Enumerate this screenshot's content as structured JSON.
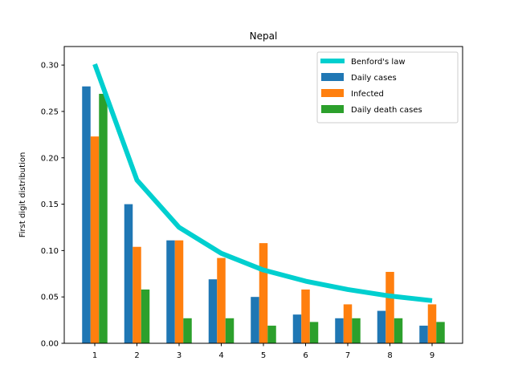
{
  "chart_data": {
    "type": "bar",
    "title": "Nepal",
    "xlabel": "",
    "ylabel": "First digit distribution",
    "categories": [
      "1",
      "2",
      "3",
      "4",
      "5",
      "6",
      "7",
      "8",
      "9"
    ],
    "ylim": [
      0,
      0.32
    ],
    "yticks": [
      "0.00",
      "0.05",
      "0.10",
      "0.15",
      "0.20",
      "0.25",
      "0.30"
    ],
    "legend_position": "top-right",
    "grid": false,
    "series": [
      {
        "name": "Daily cases",
        "kind": "bar",
        "color": "#1f77b4",
        "values": [
          0.277,
          0.15,
          0.111,
          0.069,
          0.05,
          0.031,
          0.027,
          0.035,
          0.019
        ]
      },
      {
        "name": "Infected",
        "kind": "bar",
        "color": "#ff7f0e",
        "values": [
          0.223,
          0.104,
          0.111,
          0.092,
          0.108,
          0.058,
          0.042,
          0.077,
          0.042
        ]
      },
      {
        "name": "Daily death cases",
        "kind": "bar",
        "color": "#2ca02c",
        "values": [
          0.269,
          0.058,
          0.027,
          0.027,
          0.019,
          0.023,
          0.027,
          0.027,
          0.023
        ]
      },
      {
        "name": "Benford's law",
        "kind": "line",
        "color": "#00cfcf",
        "values": [
          0.301,
          0.176,
          0.125,
          0.097,
          0.079,
          0.067,
          0.058,
          0.051,
          0.046
        ]
      }
    ]
  }
}
